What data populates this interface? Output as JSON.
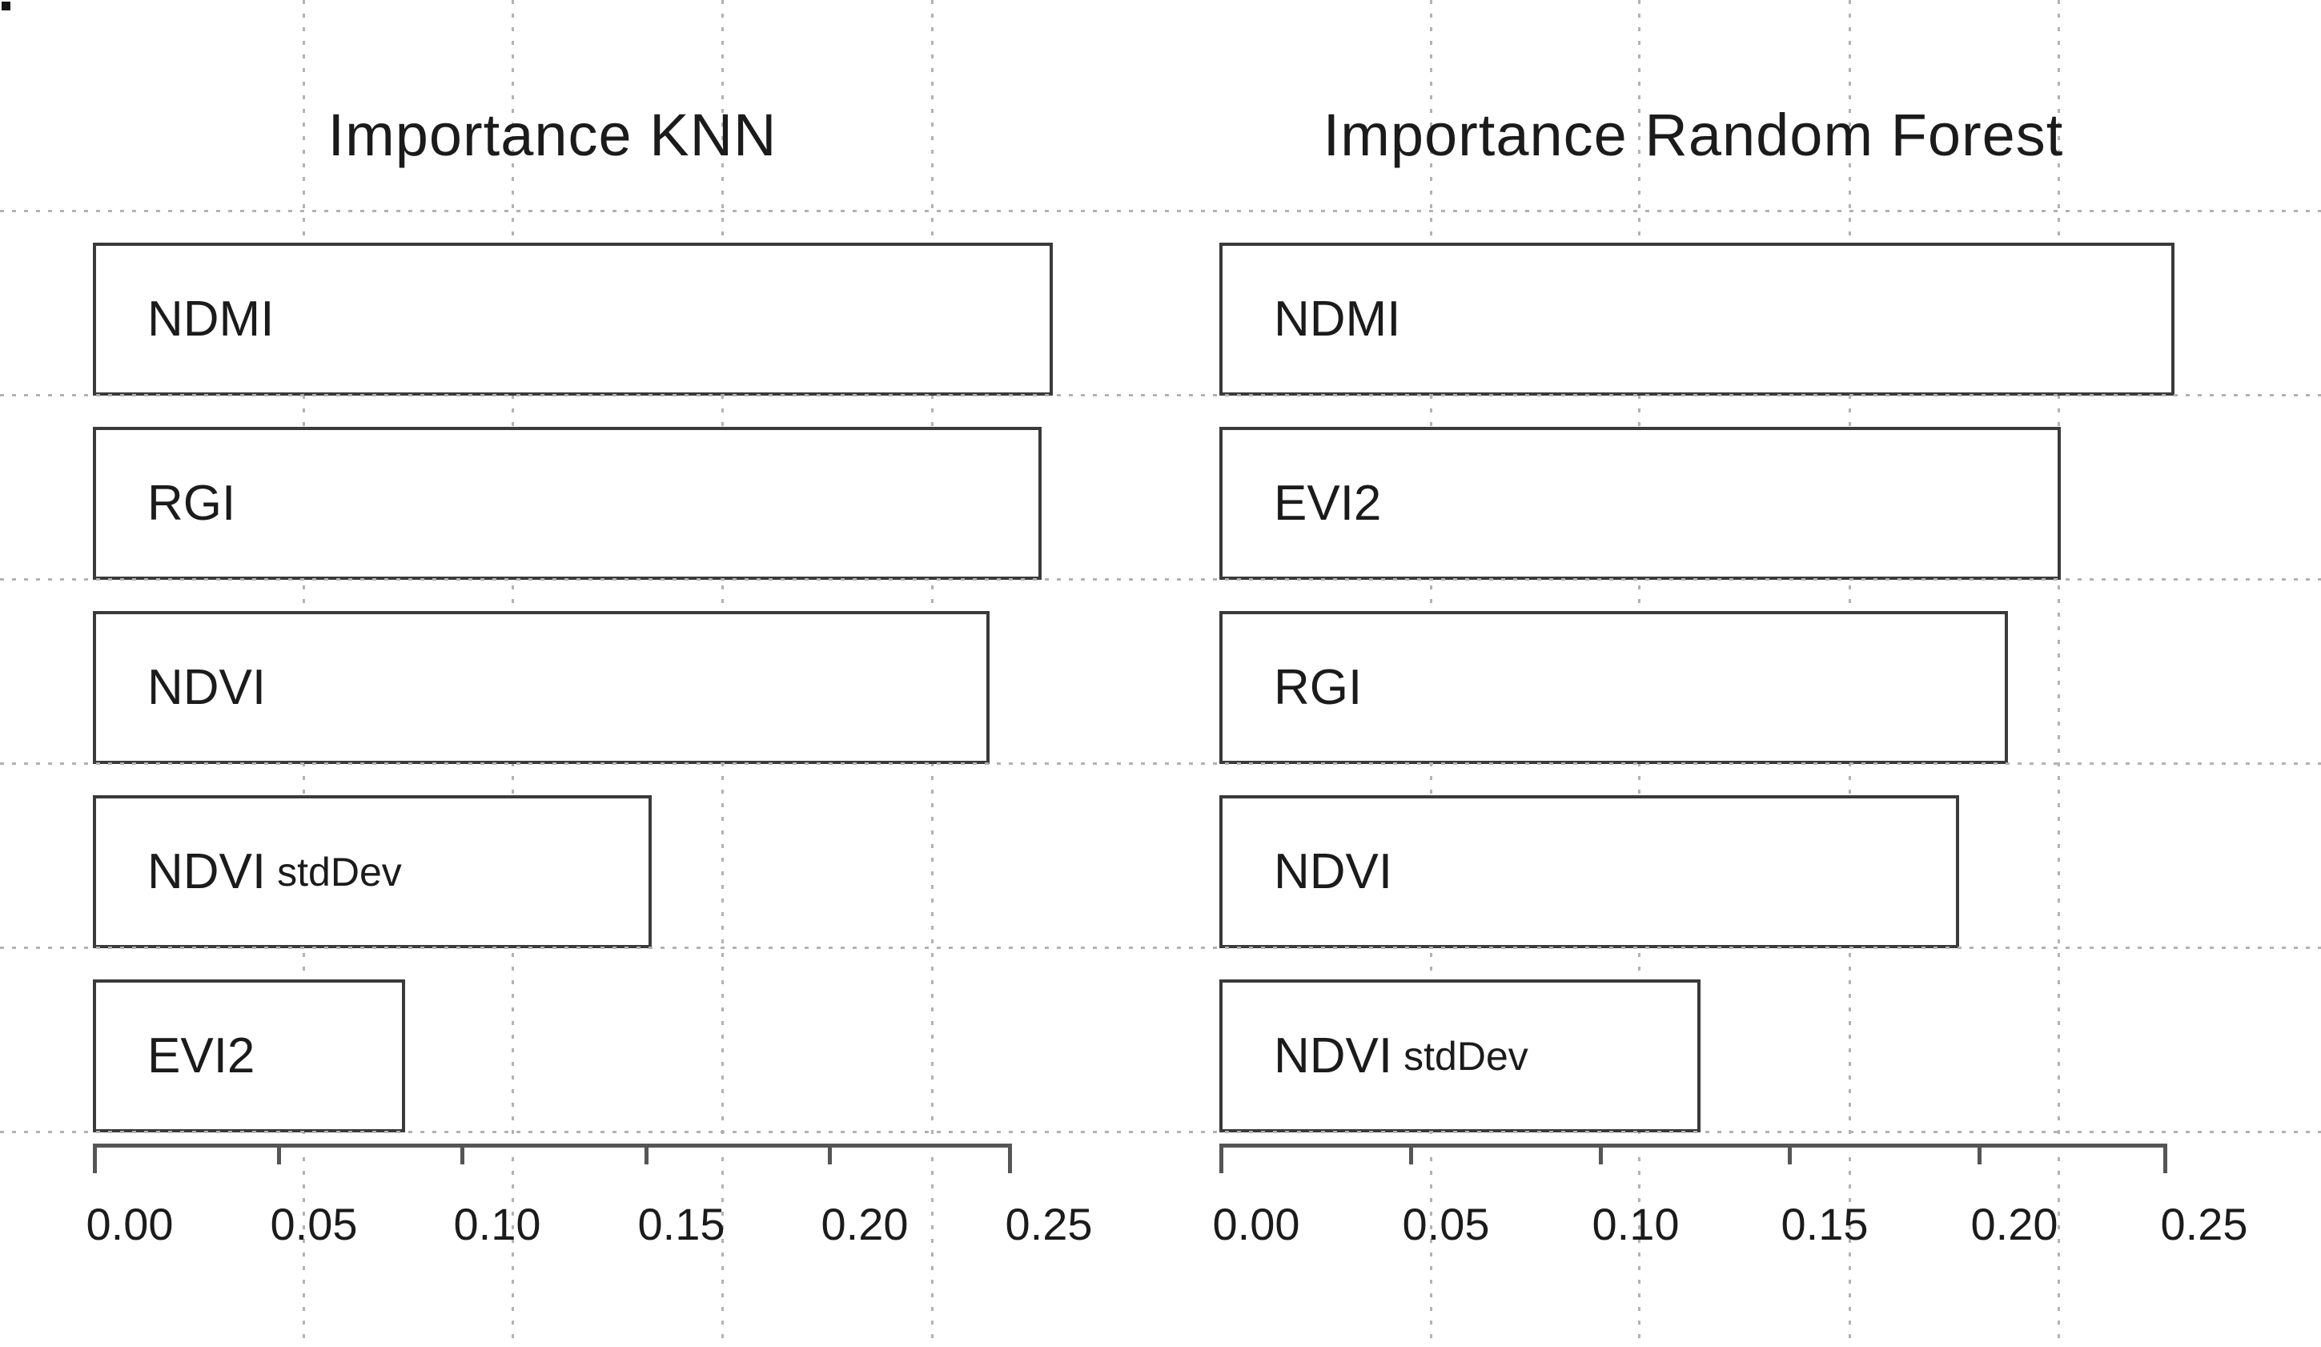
{
  "figure": {
    "background": "#ffffff"
  },
  "style": {
    "background": "#ffffff",
    "text_color": "#1b1b1b",
    "bar_fill": "#ffffff",
    "bar_border": "#3a3a3a",
    "axis_color": "#555555",
    "gridline_color": "#b2b2b2"
  },
  "chart_data": [
    {
      "type": "bar",
      "orientation": "horizontal",
      "title": "Importance KNN",
      "categories": [
        "NDMI",
        "RGI",
        "NDVI",
        "NDVI stdDev",
        "EVI2"
      ],
      "values": [
        0.261,
        0.258,
        0.244,
        0.152,
        0.085
      ],
      "xlabel": "",
      "ylabel": "",
      "xlim": [
        0,
        0.25
      ],
      "x_ticks": [
        0,
        0.05,
        0.1,
        0.15,
        0.2,
        0.25
      ],
      "x_tick_labels": [
        "0.00",
        "0.05",
        "0.10",
        "0.15",
        "0.20",
        "0.25"
      ],
      "gridline_values": [
        0.057,
        0.114,
        0.171,
        0.228
      ],
      "grid": "dotted",
      "legend": "none",
      "bar_labels_inside": true
    },
    {
      "type": "bar",
      "orientation": "horizontal",
      "title": "Importance Random Forest",
      "categories": [
        "NDMI",
        "EVI2",
        "RGI",
        "NDVI",
        "NDVI stdDev"
      ],
      "values": [
        0.252,
        0.222,
        0.208,
        0.195,
        0.127
      ],
      "xlabel": "",
      "ylabel": "",
      "xlim": [
        0,
        0.25
      ],
      "x_ticks": [
        0,
        0.05,
        0.1,
        0.15,
        0.2,
        0.25
      ],
      "x_tick_labels": [
        "0.00",
        "0.05",
        "0.10",
        "0.15",
        "0.20",
        "0.25"
      ],
      "gridline_values": [
        0.0555,
        0.1105,
        0.166,
        0.221
      ],
      "grid": "dotted",
      "legend": "none",
      "bar_labels_inside": true
    }
  ]
}
